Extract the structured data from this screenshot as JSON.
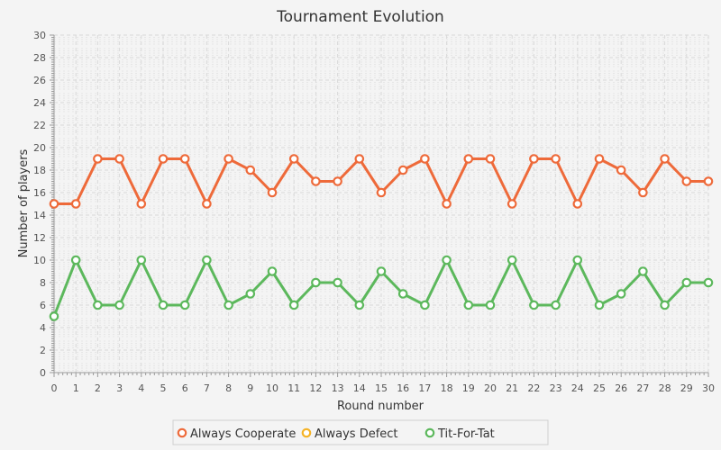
{
  "chart_data": {
    "type": "line",
    "title": "Tournament Evolution",
    "xlabel": "Round number",
    "ylabel": "Number of players",
    "xlim": [
      0,
      30
    ],
    "ylim": [
      0,
      30
    ],
    "x_ticks": [
      0,
      1,
      2,
      3,
      4,
      5,
      6,
      7,
      8,
      9,
      10,
      11,
      12,
      13,
      14,
      15,
      16,
      17,
      18,
      19,
      20,
      21,
      22,
      23,
      24,
      25,
      26,
      27,
      28,
      29,
      30
    ],
    "y_ticks": [
      0,
      2,
      4,
      6,
      8,
      10,
      12,
      14,
      16,
      18,
      20,
      22,
      24,
      26,
      28,
      30
    ],
    "grid": true,
    "legend_position": "bottom",
    "x": [
      0,
      1,
      2,
      3,
      4,
      5,
      6,
      7,
      8,
      9,
      10,
      11,
      12,
      13,
      14,
      15,
      16,
      17,
      18,
      19,
      20,
      21,
      22,
      23,
      24,
      25,
      26,
      27,
      28,
      29,
      30
    ],
    "series": [
      {
        "name": "Always Cooperate",
        "color": "#ee6a3a",
        "values": [
          15,
          15,
          19,
          19,
          15,
          19,
          19,
          15,
          19,
          18,
          16,
          19,
          17,
          17,
          19,
          16,
          18,
          19,
          15,
          19,
          19,
          15,
          19,
          19,
          15,
          19,
          18,
          16,
          19,
          17,
          17
        ]
      },
      {
        "name": "Always Defect",
        "color": "#f5b326",
        "values": [
          0,
          0,
          0,
          0,
          0,
          0,
          0,
          0,
          0,
          0,
          0,
          0,
          0,
          0,
          0,
          0,
          0,
          0,
          0,
          0,
          0,
          0,
          0,
          0,
          0,
          0,
          0,
          0,
          0,
          0,
          0
        ],
        "drawn": false
      },
      {
        "name": "Tit-For-Tat",
        "color": "#5cb85c",
        "values": [
          5,
          10,
          6,
          6,
          10,
          6,
          6,
          10,
          6,
          7,
          9,
          6,
          8,
          8,
          6,
          9,
          7,
          6,
          10,
          6,
          6,
          10,
          6,
          6,
          10,
          6,
          7,
          9,
          6,
          8,
          8
        ]
      }
    ]
  }
}
